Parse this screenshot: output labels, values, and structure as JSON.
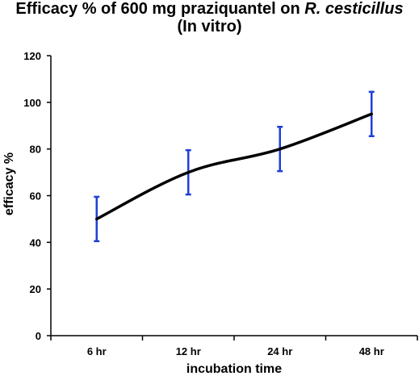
{
  "chart_data": {
    "type": "line",
    "title_prefix": "Efficacy % of 600 mg praziquantel on ",
    "title_italic": "R. cesticillus",
    "subtitle": "(In vitro)",
    "xlabel": "incubation time",
    "ylabel": "efficacy %",
    "categories": [
      "6 hr",
      "12 hr",
      "24 hr",
      "48 hr"
    ],
    "series": [
      {
        "values": [
          50,
          70,
          80,
          95
        ],
        "error": [
          9.5,
          9.5,
          9.5,
          9.5
        ],
        "color": "#000000",
        "error_color": "#1f3fd6"
      }
    ],
    "ylim": [
      0,
      120
    ],
    "yticks": [
      0,
      20,
      40,
      60,
      80,
      100,
      120
    ],
    "grid": false,
    "legend": "none"
  }
}
